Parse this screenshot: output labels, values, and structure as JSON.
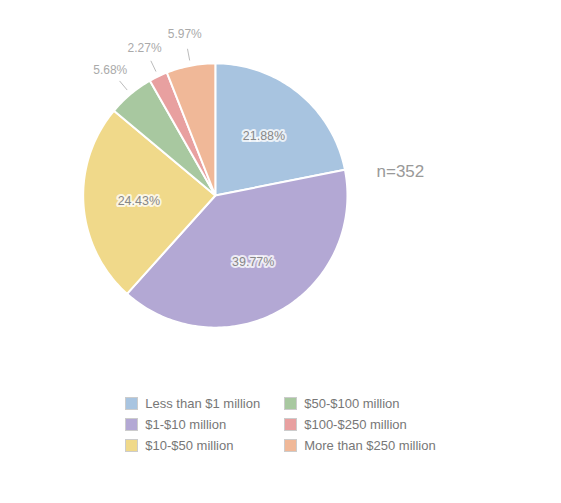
{
  "chart_data": {
    "type": "pie",
    "categories": [
      "Less than $1 million",
      "$1-$10 million",
      "$10-$50 million",
      "$50-$100 million",
      "$100-$250 million",
      "More than $250 million"
    ],
    "values": [
      21.88,
      39.77,
      24.43,
      5.68,
      2.27,
      5.97
    ],
    "value_labels": [
      "21.88%",
      "39.77%",
      "24.43%",
      "5.68%",
      "2.27%",
      "5.97%"
    ],
    "colors": [
      "#a8c4e0",
      "#b3a8d4",
      "#f0d98a",
      "#a8c8a0",
      "#e8a0a0",
      "#f0b898"
    ],
    "annotation": "n=352",
    "data_labels": true,
    "legend": "bottom"
  }
}
